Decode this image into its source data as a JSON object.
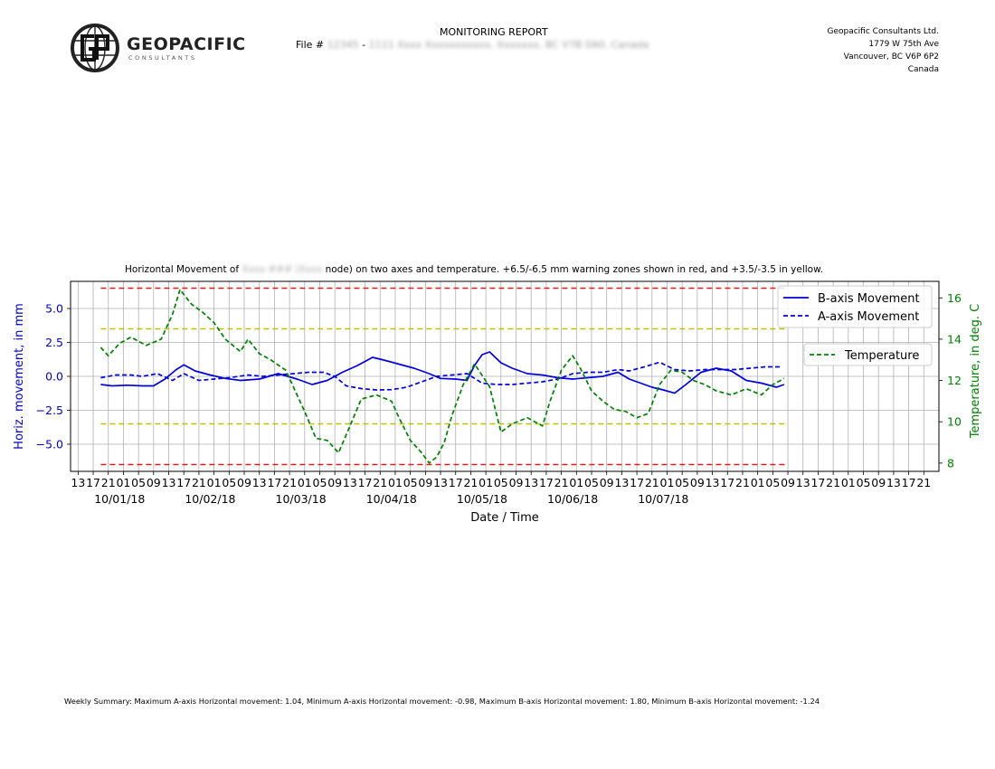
{
  "header": {
    "logo_name": "GEOPACIFIC",
    "logo_sub": "CONSULTANTS",
    "report_title": "MONITORING REPORT",
    "file_label": "File #",
    "file_id": "12345",
    "file_separator": "-",
    "file_location": "1111 Xxxx Xxxxxxxxxxx, Xxxxxxx, BC V7B 0A0, Canada",
    "address": [
      "Geopacific Consultants Ltd.",
      "1779 W 75th Ave",
      "Vancouver, BC V6P 6P2",
      "Canada"
    ]
  },
  "title": {
    "prefix": "Horizontal Movement of",
    "sensor": "Xxxx ###",
    "node": "(Xxxx",
    "suffix": "node) on two axes and temperature. +6.5/-6.5 mm warning zones shown in red, and +3.5/-3.5 in yellow."
  },
  "summary": "Weekly Summary: Maximum A-axis Horizontal movement: 1.04, Minimum A-axis Horizontal movement: -0.98, Maximum B-axis Horizontal movement: 1.80, Minimum B-axis Horizontal movement: -1.24",
  "chart_data": {
    "type": "line",
    "xlabel": "Date / Time",
    "ylabel": "Horiz. movement, in mm",
    "y2label": "Temperature, in deg. C",
    "x_unit": "hours since 10/01/18 00:00 (tick labels show hour of day)",
    "xlim": [
      -13,
      217
    ],
    "ylim": [
      -7.0,
      7.0
    ],
    "y2lim": [
      7.6,
      16.8
    ],
    "yticks": [
      -5.0,
      -2.5,
      0.0,
      2.5,
      5.0
    ],
    "yticklabels": [
      "−5.0",
      "−2.5",
      "0.0",
      "2.5",
      "5.0"
    ],
    "y2ticks": [
      8,
      10,
      12,
      14,
      16
    ],
    "xticks": [
      -11,
      -7,
      -3,
      1,
      5,
      9,
      13,
      17,
      21,
      25,
      29,
      33,
      37,
      41,
      45,
      49,
      53,
      57,
      61,
      65,
      69,
      73,
      77,
      81,
      85,
      89,
      93,
      97,
      101,
      105,
      109,
      113,
      117,
      121,
      125,
      129,
      133,
      137,
      141,
      145,
      149,
      153,
      157,
      161,
      165,
      169,
      173,
      177,
      181,
      185,
      189,
      193,
      197,
      201,
      205,
      209,
      213
    ],
    "xticklabels": [
      "13",
      "17",
      "21",
      "01",
      "05",
      "09",
      "13",
      "17",
      "21",
      "01",
      "05",
      "09",
      "13",
      "17",
      "21",
      "01",
      "05",
      "09",
      "13",
      "17",
      "21",
      "01",
      "05",
      "09",
      "13",
      "17",
      "21",
      "01",
      "05",
      "09",
      "13",
      "17",
      "21",
      "01",
      "05",
      "09",
      "13",
      "17",
      "21",
      "01",
      "05",
      "09",
      "13",
      "17",
      "21",
      "01",
      "05",
      "09",
      "13",
      "17",
      "21",
      "01",
      "05",
      "09",
      "13",
      "17",
      "21"
    ],
    "date_labels": [
      {
        "x": 0,
        "label": "10/01/18"
      },
      {
        "x": 24,
        "label": "10/02/18"
      },
      {
        "x": 48,
        "label": "10/03/18"
      },
      {
        "x": 72,
        "label": "10/04/18"
      },
      {
        "x": 96,
        "label": "10/05/18"
      },
      {
        "x": 120,
        "label": "10/06/18"
      },
      {
        "x": 144,
        "label": "10/07/18"
      }
    ],
    "grid": true,
    "colors": {
      "b_axis": "#0000dd",
      "a_axis": "#0000dd",
      "temperature": "#008000",
      "red_zone": "#e31a1c",
      "yellow_zone": "#bfbf00",
      "left_axis_text": "#0000cc",
      "right_axis_text": "#008000"
    },
    "warning_lines": [
      {
        "y": 6.5,
        "color": "red"
      },
      {
        "y": -6.5,
        "color": "red"
      },
      {
        "y": 3.5,
        "color": "yellow"
      },
      {
        "y": -3.5,
        "color": "yellow"
      }
    ],
    "legend": {
      "placement": "top-right",
      "movement": [
        "B-axis Movement",
        "A-axis Movement"
      ],
      "temperature": "Temperature"
    },
    "series": [
      {
        "name": "B-axis Movement",
        "axis": "left",
        "style": "solid",
        "x": [
          -5,
          -2,
          2,
          6,
          9,
          12,
          15,
          17,
          20,
          24,
          28,
          32,
          37,
          42,
          47,
          51,
          55,
          59,
          63,
          67,
          70,
          74,
          78,
          82,
          85,
          89,
          92,
          94,
          96,
          98,
          101,
          104,
          108,
          112,
          116,
          120,
          124,
          128,
          132,
          135,
          138,
          141,
          144,
          147,
          150,
          154,
          158,
          162,
          166,
          170,
          174,
          176
        ],
        "y": [
          -0.6,
          -0.7,
          -0.65,
          -0.7,
          -0.7,
          -0.2,
          0.5,
          0.85,
          0.4,
          0.1,
          -0.15,
          -0.3,
          -0.2,
          0.2,
          -0.2,
          -0.6,
          -0.3,
          0.3,
          0.8,
          1.4,
          1.2,
          0.9,
          0.6,
          0.2,
          -0.15,
          -0.2,
          -0.3,
          0.8,
          1.6,
          1.8,
          1.0,
          0.6,
          0.2,
          0.1,
          -0.1,
          -0.2,
          -0.1,
          0.0,
          0.3,
          -0.2,
          -0.5,
          -0.8,
          -1.0,
          -1.24,
          -0.6,
          0.3,
          0.6,
          0.4,
          -0.3,
          -0.5,
          -0.8,
          -0.6
        ]
      },
      {
        "name": "A-axis Movement",
        "axis": "left",
        "style": "dashed",
        "x": [
          -5,
          -1,
          3,
          6,
          10,
          14,
          17,
          21,
          25,
          29,
          34,
          38,
          42,
          46,
          50,
          54,
          57,
          60,
          64,
          68,
          72,
          76,
          80,
          84,
          88,
          92,
          96,
          100,
          104,
          108,
          112,
          116,
          120,
          124,
          128,
          132,
          135,
          139,
          143,
          147,
          151,
          155,
          159,
          163,
          167,
          171,
          175
        ],
        "y": [
          -0.1,
          0.1,
          0.1,
          0.0,
          0.2,
          -0.3,
          0.2,
          -0.3,
          -0.2,
          -0.1,
          0.1,
          0.0,
          0.1,
          0.2,
          0.3,
          0.3,
          0.0,
          -0.7,
          -0.9,
          -1.0,
          -0.98,
          -0.8,
          -0.4,
          0.0,
          0.1,
          0.2,
          -0.5,
          -0.6,
          -0.6,
          -0.5,
          -0.4,
          -0.2,
          0.2,
          0.3,
          0.3,
          0.5,
          0.4,
          0.7,
          1.04,
          0.5,
          0.4,
          0.5,
          0.5,
          0.5,
          0.6,
          0.7,
          0.7
        ]
      },
      {
        "name": "Temperature",
        "axis": "right",
        "style": "dashed",
        "x": [
          -5,
          -3,
          0,
          3,
          7,
          11,
          14,
          16,
          19,
          22,
          25,
          28,
          32,
          34,
          37,
          40,
          44,
          49,
          52,
          55,
          58,
          61,
          64,
          68,
          72,
          74,
          77,
          80,
          82,
          84,
          86,
          88,
          91,
          94,
          98,
          101,
          104,
          108,
          112,
          114,
          117,
          120,
          122,
          125,
          128,
          131,
          134,
          137,
          140,
          143,
          146,
          149,
          152,
          155,
          158,
          162,
          166,
          170,
          173,
          176
        ],
        "y": [
          13.6,
          13.2,
          13.8,
          14.1,
          13.7,
          14.0,
          15.2,
          16.4,
          15.7,
          15.3,
          14.8,
          14.0,
          13.4,
          14.0,
          13.3,
          13.0,
          12.5,
          10.5,
          9.2,
          9.1,
          8.5,
          9.8,
          11.1,
          11.3,
          11.0,
          10.2,
          9.1,
          8.5,
          8.0,
          8.3,
          9.0,
          10.3,
          11.8,
          12.8,
          11.7,
          9.5,
          9.9,
          10.2,
          9.8,
          11.0,
          12.5,
          13.2,
          12.6,
          11.5,
          11.0,
          10.6,
          10.5,
          10.2,
          10.4,
          11.8,
          12.5,
          12.4,
          12.0,
          11.8,
          11.5,
          11.3,
          11.6,
          11.3,
          11.8,
          12.1
        ]
      }
    ]
  }
}
